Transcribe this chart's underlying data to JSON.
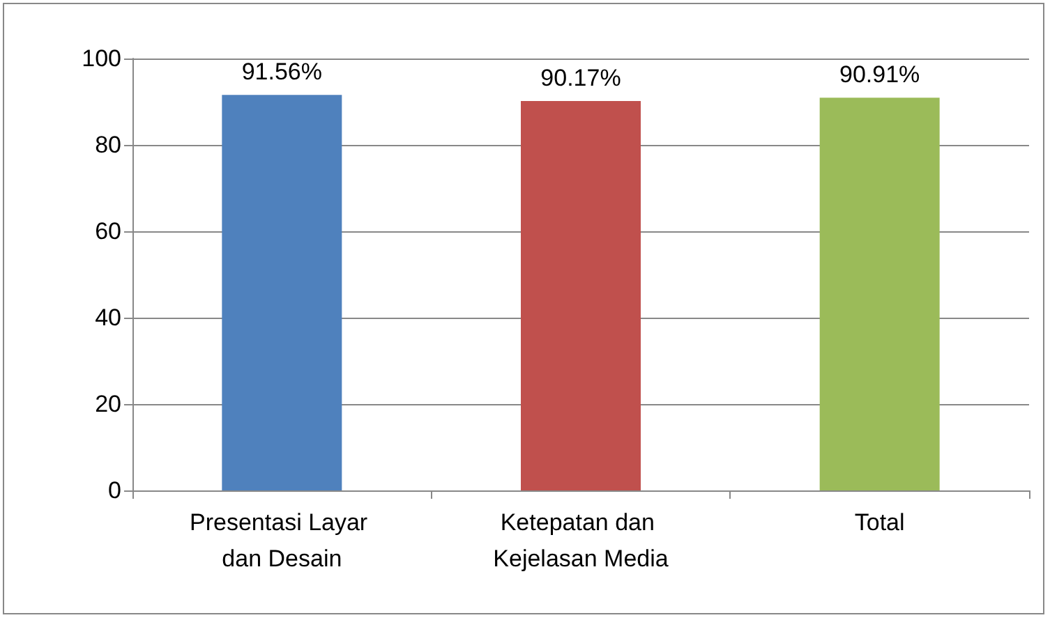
{
  "chart_data": {
    "type": "bar",
    "categories": [
      "Presentasi Layar dan Desain",
      "Ketepatan dan Kejelasan Media",
      "Total"
    ],
    "values": [
      91.56,
      90.17,
      90.91
    ],
    "colors": [
      "#4f81bd",
      "#c0504d",
      "#9bbb59"
    ],
    "value_labels": [
      "91.56%",
      "90.17%",
      "90.91%"
    ],
    "ylim": [
      0,
      100
    ],
    "yticks": [
      0,
      20,
      40,
      60,
      80,
      100
    ],
    "grid": "y"
  }
}
